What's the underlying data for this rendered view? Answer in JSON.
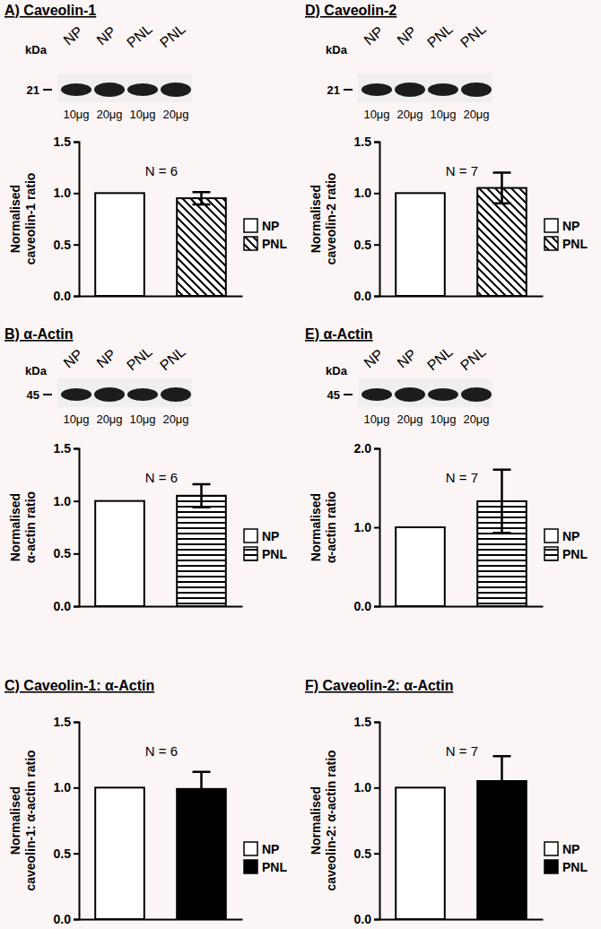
{
  "chart_data": [
    {
      "type": "bar",
      "title": "A) Caveolin-1",
      "y_label": "Normalised caveolin-1 ratio",
      "categories": [
        "NP",
        "PNL"
      ],
      "values": [
        1.0,
        0.95
      ],
      "errors": [
        null,
        0.06
      ],
      "annotation": "N = 6",
      "ylim": [
        0,
        1.5
      ],
      "yticks": [
        {
          "value": 0,
          "label": "0.0"
        },
        {
          "value": 0.5,
          "label": "0.5"
        },
        {
          "value": 1,
          "label": "1.0"
        },
        {
          "value": 1.5,
          "label": "1.5"
        }
      ],
      "colors": [
        "#ffffff",
        "#000000"
      ],
      "legend": "right",
      "tick_labels": "y",
      "blot": {
        "kda_label": "kDa",
        "marker": 21,
        "lanes": [
          "NP",
          "NP",
          "PNL",
          "PNL"
        ],
        "loads": [
          "10μg",
          "20μg",
          "10μg",
          "20μg"
        ]
      }
    },
    {
      "type": "bar",
      "title": "B) α-Actin",
      "y_label": "Normalised α-actin ratio",
      "categories": [
        "NP",
        "PNL"
      ],
      "values": [
        1.0,
        1.05
      ],
      "errors": [
        null,
        0.11
      ],
      "annotation": "N = 6",
      "ylim": [
        0,
        1.5
      ],
      "yticks": [
        {
          "value": 0,
          "label": "0.0"
        },
        {
          "value": 0.5,
          "label": "0.5"
        },
        {
          "value": 1,
          "label": "1.0"
        },
        {
          "value": 1.5,
          "label": "1.5"
        }
      ],
      "colors": [
        "#ffffff",
        "#000000"
      ],
      "legend": "right",
      "tick_labels": "y",
      "blot": {
        "kda_label": "kDa",
        "marker": 45,
        "lanes": [
          "NP",
          "NP",
          "PNL",
          "PNL"
        ],
        "loads": [
          "10μg",
          "20μg",
          "10μg",
          "20μg"
        ]
      }
    },
    {
      "type": "bar",
      "title": "C) Caveolin-1: α-Actin",
      "y_label": "Normalised caveolin-1: α-actin ratio",
      "categories": [
        "NP",
        "PNL"
      ],
      "values": [
        1.0,
        0.99
      ],
      "errors": [
        null,
        0.13
      ],
      "annotation": "N = 6",
      "ylim": [
        0,
        1.5
      ],
      "yticks": [
        {
          "value": 0,
          "label": "0.0"
        },
        {
          "value": 0.5,
          "label": "0.5"
        },
        {
          "value": 1,
          "label": "1.0"
        },
        {
          "value": 1.5,
          "label": "1.5"
        }
      ],
      "colors": [
        "#ffffff",
        "#000000"
      ],
      "legend": "right",
      "tick_labels": "y"
    },
    {
      "type": "bar",
      "title": "D) Caveolin-2",
      "y_label": "Normalised caveolin-2 ratio",
      "categories": [
        "NP",
        "PNL"
      ],
      "values": [
        1.0,
        1.05
      ],
      "errors": [
        null,
        0.15
      ],
      "annotation": "N = 7",
      "ylim": [
        0,
        1.5
      ],
      "yticks": [
        {
          "value": 0,
          "label": "0.0"
        },
        {
          "value": 0.5,
          "label": "0.5"
        },
        {
          "value": 1,
          "label": "1.0"
        },
        {
          "value": 1.5,
          "label": "1.5"
        }
      ],
      "colors": [
        "#ffffff",
        "#000000"
      ],
      "legend": "right",
      "tick_labels": "y",
      "blot": {
        "kda_label": "kDa",
        "marker": 21,
        "lanes": [
          "NP",
          "NP",
          "PNL",
          "PNL"
        ],
        "loads": [
          "10μg",
          "20μg",
          "10μg",
          "20μg"
        ]
      }
    },
    {
      "type": "bar",
      "title": "E) α-Actin",
      "y_label": "Normalised α-actin ratio",
      "categories": [
        "NP",
        "PNL"
      ],
      "values": [
        1.0,
        1.33
      ],
      "errors": [
        null,
        0.4
      ],
      "annotation": "N = 7",
      "ylim": [
        0,
        2
      ],
      "yticks": [
        {
          "value": 0,
          "label": "0.0"
        },
        {
          "value": 1,
          "label": "1.0"
        },
        {
          "value": 2,
          "label": "2.0"
        }
      ],
      "colors": [
        "#ffffff",
        "#000000"
      ],
      "legend": "right",
      "tick_labels": "y",
      "blot": {
        "kda_label": "kDa",
        "marker": 45,
        "lanes": [
          "NP",
          "NP",
          "PNL",
          "PNL"
        ],
        "loads": [
          "10μg",
          "20μg",
          "10μg",
          "20μg"
        ]
      }
    },
    {
      "type": "bar",
      "title": "F) Caveolin-2: α-Actin",
      "y_label": "Normalised caveolin-2: α-actin ratio",
      "categories": [
        "NP",
        "PNL"
      ],
      "values": [
        1.0,
        1.05
      ],
      "errors": [
        null,
        0.19
      ],
      "annotation": "N = 7",
      "ylim": [
        0,
        1.5
      ],
      "yticks": [
        {
          "value": 0,
          "label": "0.0"
        },
        {
          "value": 0.5,
          "label": "0.5"
        },
        {
          "value": 1,
          "label": "1.0"
        },
        {
          "value": 1.5,
          "label": "1.5"
        }
      ],
      "colors": [
        "#ffffff",
        "#000000"
      ],
      "legend": "right",
      "tick_labels": "y"
    }
  ]
}
